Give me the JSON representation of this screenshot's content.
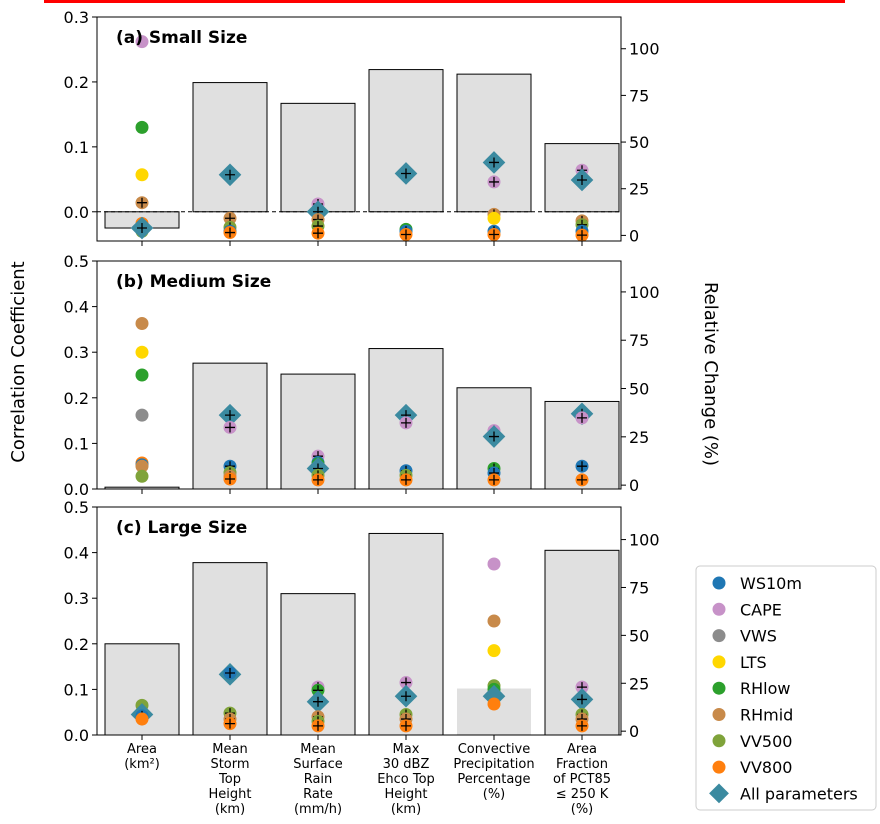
{
  "colors": {
    "bar_fill": "#e0e0e0",
    "bar_stroke": "#000000",
    "red_line": "#ff0000",
    "WS10m": "#1f77b4",
    "CAPE": "#c792c8",
    "VWS": "#8c8c8c",
    "LTS": "#ffd700",
    "RHlow": "#2ca02c",
    "RHmid": "#c88a4a",
    "VV500": "#7fa33a",
    "VV800": "#ff7f0e",
    "All parameters": "#3b8aa0"
  },
  "chart_data": {
    "type": "bar",
    "ylabel": "Correlation Coefficient",
    "y2label": "Relative Change (%)",
    "categories": [
      [
        "Area",
        "(km²)"
      ],
      [
        "Mean",
        "Storm",
        "Top",
        "Height",
        "(km)"
      ],
      [
        "Mean",
        "Surface",
        "Rain",
        "Rate",
        "(mm/h)"
      ],
      [
        "Max",
        "30 dBZ",
        "Ehco Top",
        "Height",
        "(km)"
      ],
      [
        "Convective",
        "Precipitation",
        "Percentage",
        "(%)"
      ],
      [
        "Area",
        "Fraction",
        "of PCT85",
        "≤ 250 K",
        "(%)"
      ]
    ],
    "legend": [
      "WS10m",
      "CAPE",
      "VWS",
      "LTS",
      "RHlow",
      "RHmid",
      "VV500",
      "VV800",
      "All parameters"
    ],
    "legend_position": "right",
    "panels": [
      {
        "title": "(a) Small Size",
        "ylim": [
          -0.045,
          0.3
        ],
        "yticks": [
          0.0,
          0.1,
          0.2,
          0.3
        ],
        "y2lim": [
          -3,
          117
        ],
        "y2ticks": [
          0,
          25,
          50,
          75,
          100
        ],
        "zero_line": true,
        "bar_values": [
          -0.025,
          0.199,
          0.167,
          0.219,
          0.212,
          0.105
        ],
        "markers": [
          [
            [
              "CAPE",
              0.262,
              false
            ],
            [
              "RHlow",
              0.13,
              false
            ],
            [
              "LTS",
              0.057,
              false
            ],
            [
              "RHmid",
              0.014,
              true
            ],
            [
              "VV800",
              -0.018,
              true
            ],
            [
              "RHlow",
              -0.022,
              false
            ],
            [
              "WS10m",
              -0.028,
              true
            ],
            [
              "VV500",
              -0.03,
              true
            ],
            [
              "All parameters",
              -0.025,
              true
            ]
          ],
          [
            [
              "All parameters",
              0.057,
              true
            ],
            [
              "RHmid",
              -0.01,
              true
            ],
            [
              "VV500",
              -0.024,
              true
            ],
            [
              "WS10m",
              -0.03,
              true
            ],
            [
              "VV800",
              -0.032,
              true
            ]
          ],
          [
            [
              "CAPE",
              0.012,
              true
            ],
            [
              "WS10m",
              0.003,
              true
            ],
            [
              "All parameters",
              0.0,
              true
            ],
            [
              "RHmid",
              -0.012,
              true
            ],
            [
              "VV500",
              -0.022,
              true
            ],
            [
              "VV800",
              -0.033,
              true
            ]
          ],
          [
            [
              "All parameters",
              0.059,
              true
            ],
            [
              "RHlow",
              -0.027,
              false
            ],
            [
              "WS10m",
              -0.03,
              true
            ],
            [
              "VV800",
              -0.035,
              true
            ]
          ],
          [
            [
              "All parameters",
              0.076,
              true
            ],
            [
              "CAPE",
              0.046,
              true
            ],
            [
              "RHmid",
              -0.004,
              true
            ],
            [
              "LTS",
              -0.01,
              false
            ],
            [
              "WS10m",
              -0.03,
              true
            ],
            [
              "VV800",
              -0.035,
              true
            ]
          ],
          [
            [
              "CAPE",
              0.064,
              true
            ],
            [
              "All parameters",
              0.049,
              true
            ],
            [
              "RHmid",
              -0.014,
              true
            ],
            [
              "VV500",
              -0.02,
              true
            ],
            [
              "WS10m",
              -0.03,
              true
            ],
            [
              "VV800",
              -0.036,
              true
            ]
          ]
        ]
      },
      {
        "title": "(b) Medium Size",
        "ylim": [
          0.0,
          0.5
        ],
        "yticks": [
          0.0,
          0.1,
          0.2,
          0.3,
          0.4,
          0.5
        ],
        "y2lim": [
          -2,
          116
        ],
        "y2ticks": [
          0,
          25,
          50,
          75,
          100
        ],
        "zero_line": false,
        "bar_values": [
          0.004,
          0.276,
          0.252,
          0.308,
          0.222,
          0.192
        ],
        "markers": [
          [
            [
              "RHmid",
              0.363,
              false
            ],
            [
              "LTS",
              0.3,
              false
            ],
            [
              "RHlow",
              0.25,
              false
            ],
            [
              "VWS",
              0.162,
              false
            ],
            [
              "VV800",
              0.057,
              false
            ],
            [
              "WS10m",
              0.053,
              false
            ],
            [
              "RHmid",
              0.05,
              false
            ],
            [
              "VV500",
              0.028,
              false
            ]
          ],
          [
            [
              "All parameters",
              0.162,
              true
            ],
            [
              "CAPE",
              0.135,
              true
            ],
            [
              "WS10m",
              0.05,
              true
            ],
            [
              "VV500",
              0.036,
              true
            ],
            [
              "RHmid",
              0.028,
              true
            ],
            [
              "VV800",
              0.022,
              true
            ]
          ],
          [
            [
              "CAPE",
              0.072,
              true
            ],
            [
              "WS10m",
              0.058,
              true
            ],
            [
              "RHlow",
              0.055,
              true
            ],
            [
              "All parameters",
              0.045,
              true
            ],
            [
              "VV500",
              0.03,
              true
            ],
            [
              "VV800",
              0.02,
              true
            ]
          ],
          [
            [
              "All parameters",
              0.162,
              true
            ],
            [
              "CAPE",
              0.145,
              true
            ],
            [
              "WS10m",
              0.04,
              true
            ],
            [
              "VV500",
              0.03,
              true
            ],
            [
              "VV800",
              0.02,
              true
            ]
          ],
          [
            [
              "CAPE",
              0.128,
              true
            ],
            [
              "All parameters",
              0.115,
              true
            ],
            [
              "RHlow",
              0.045,
              true
            ],
            [
              "WS10m",
              0.035,
              true
            ],
            [
              "VV800",
              0.02,
              true
            ]
          ],
          [
            [
              "All parameters",
              0.165,
              true
            ],
            [
              "CAPE",
              0.156,
              true
            ],
            [
              "WS10m",
              0.05,
              true
            ],
            [
              "VV800",
              0.02,
              true
            ]
          ]
        ]
      },
      {
        "title": "(c) Large Size",
        "ylim": [
          0.0,
          0.5
        ],
        "yticks": [
          0.0,
          0.1,
          0.2,
          0.3,
          0.4,
          0.5
        ],
        "y2lim": [
          -2,
          117
        ],
        "y2ticks": [
          0,
          25,
          50,
          75,
          100
        ],
        "zero_line": false,
        "bar_values": [
          0.2,
          0.378,
          0.31,
          0.442,
          0.102,
          0.405
        ],
        "markers": [
          [
            [
              "VV500",
              0.065,
              false
            ],
            [
              "All parameters",
              0.045,
              true
            ],
            [
              "WS10m",
              0.042,
              true
            ],
            [
              "VV800",
              0.035,
              false
            ]
          ],
          [
            [
              "All parameters",
              0.133,
              true
            ],
            [
              "WS10m",
              0.136,
              true
            ],
            [
              "VV500",
              0.048,
              true
            ],
            [
              "RHmid",
              0.035,
              true
            ],
            [
              "VV800",
              0.025,
              true
            ]
          ],
          [
            [
              "CAPE",
              0.105,
              true
            ],
            [
              "RHlow",
              0.098,
              true
            ],
            [
              "All parameters",
              0.073,
              true
            ],
            [
              "RHmid",
              0.04,
              true
            ],
            [
              "VV500",
              0.03,
              true
            ],
            [
              "VV800",
              0.02,
              true
            ]
          ],
          [
            [
              "CAPE",
              0.115,
              true
            ],
            [
              "All parameters",
              0.085,
              true
            ],
            [
              "VV500",
              0.045,
              true
            ],
            [
              "RHmid",
              0.035,
              true
            ],
            [
              "VV800",
              0.02,
              true
            ]
          ],
          [
            [
              "CAPE",
              0.375,
              false
            ],
            [
              "RHmid",
              0.25,
              false
            ],
            [
              "LTS",
              0.185,
              false
            ],
            [
              "VV500",
              0.108,
              false
            ],
            [
              "RHlow",
              0.1,
              false
            ],
            [
              "All parameters",
              0.085,
              false
            ],
            [
              "VV800",
              0.068,
              false
            ]
          ],
          [
            [
              "CAPE",
              0.105,
              true
            ],
            [
              "All parameters",
              0.078,
              true
            ],
            [
              "VV500",
              0.045,
              true
            ],
            [
              "RHmid",
              0.035,
              true
            ],
            [
              "VV800",
              0.02,
              true
            ]
          ]
        ]
      }
    ]
  }
}
